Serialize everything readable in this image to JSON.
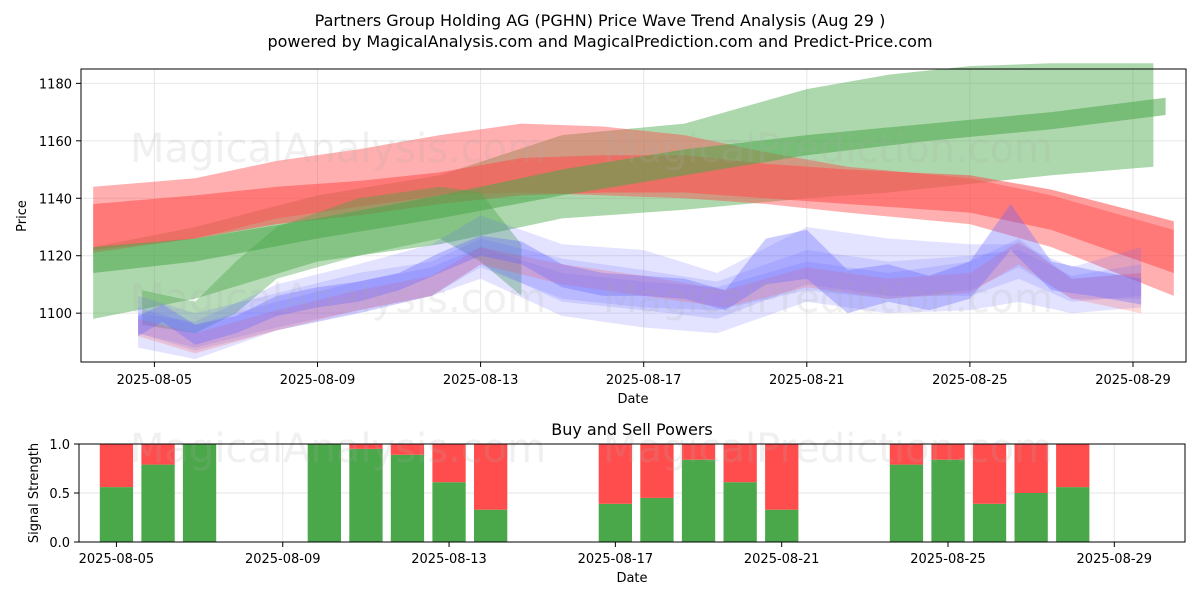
{
  "title_line1": "Partners Group Holding AG (PGHN) Price Wave Trend Analysis (Aug 29 )",
  "title_line2": "powered by MagicalAnalysis.com and MagicalPrediction.com and Predict-Price.com",
  "watermarks": [
    "MagicalAnalysis.com",
    "MagicalPrediction.com"
  ],
  "colors": {
    "green": "#4aa84a",
    "red": "#ff4d4d",
    "blue": "#6666ff",
    "light_green": "#7ec87e",
    "light_red": "#ff8f8f",
    "grid": "#e6e6e6"
  },
  "chart_data": [
    {
      "type": "area",
      "title": "",
      "xlabel": "Date",
      "ylabel": "Price",
      "ylim": [
        1083,
        1185
      ],
      "xlim": [
        "2025-08-03.2",
        "2025-08-30.3"
      ],
      "x_ticks": [
        "2025-08-05",
        "2025-08-09",
        "2025-08-13",
        "2025-08-17",
        "2025-08-21",
        "2025-08-25",
        "2025-08-29"
      ],
      "y_ticks": [
        1100,
        1120,
        1140,
        1160,
        1180
      ],
      "grid": true,
      "series": [
        {
          "name": "Green wide band",
          "color": "green",
          "opacity": 0.45,
          "x": [
            "2025-08-03.5",
            "2025-08-06",
            "2025-08-09",
            "2025-08-12",
            "2025-08-15",
            "2025-08-18",
            "2025-08-21",
            "2025-08-23",
            "2025-08-25",
            "2025-08-27",
            "2025-08-29.5"
          ],
          "upper": [
            1123,
            1130,
            1141,
            1148,
            1162,
            1166,
            1178,
            1183,
            1186,
            1187,
            1187
          ],
          "lower": [
            1098,
            1105,
            1118,
            1124,
            1133,
            1136,
            1140,
            1142,
            1145,
            1148,
            1151
          ]
        },
        {
          "name": "Red wide band",
          "color": "red",
          "opacity": 0.45,
          "x": [
            "2025-08-03.5",
            "2025-08-06",
            "2025-08-08",
            "2025-08-10",
            "2025-08-12",
            "2025-08-14",
            "2025-08-16",
            "2025-08-18",
            "2025-08-20",
            "2025-08-22",
            "2025-08-25",
            "2025-08-27",
            "2025-08-30"
          ],
          "upper": [
            1144,
            1147,
            1153,
            1157,
            1162,
            1166,
            1165,
            1162,
            1156,
            1151,
            1147,
            1141,
            1129
          ],
          "lower": [
            1121,
            1126,
            1133,
            1137,
            1141,
            1142,
            1141,
            1140,
            1138,
            1135,
            1131,
            1123,
            1106
          ]
        },
        {
          "name": "Red narrow band",
          "color": "red",
          "opacity": 0.55,
          "x": [
            "2025-08-03.5",
            "2025-08-06",
            "2025-08-08",
            "2025-08-10",
            "2025-08-12",
            "2025-08-14",
            "2025-08-16",
            "2025-08-18",
            "2025-08-20",
            "2025-08-22",
            "2025-08-25",
            "2025-08-27",
            "2025-08-30"
          ],
          "upper": [
            1138,
            1141,
            1144,
            1146,
            1149,
            1154,
            1155,
            1155,
            1152,
            1150,
            1148,
            1143,
            1132
          ],
          "lower": [
            1122,
            1126,
            1131,
            1134,
            1138,
            1141,
            1142,
            1142,
            1140,
            1138,
            1135,
            1129,
            1114
          ]
        },
        {
          "name": "Green narrow band",
          "color": "green",
          "opacity": 0.55,
          "x": [
            "2025-08-03.5",
            "2025-08-06",
            "2025-08-09",
            "2025-08-12",
            "2025-08-15",
            "2025-08-18",
            "2025-08-21",
            "2025-08-24",
            "2025-08-27",
            "2025-08-29.8"
          ],
          "upper": [
            1123,
            1126,
            1133,
            1141,
            1150,
            1157,
            1162,
            1166,
            1170,
            1175
          ],
          "lower": [
            1114,
            1118,
            1126,
            1133,
            1141,
            1148,
            1155,
            1160,
            1164,
            1169
          ]
        },
        {
          "name": "Green wave band",
          "color": "green",
          "opacity": 0.4,
          "x": [
            "2025-08-04.7",
            "2025-08-06",
            "2025-08-07",
            "2025-08-08",
            "2025-08-10",
            "2025-08-12",
            "2025-08-13",
            "2025-08-14"
          ],
          "upper": [
            1108,
            1104,
            1118,
            1130,
            1140,
            1144,
            1142,
            1124
          ],
          "lower": [
            1096,
            1093,
            1100,
            1112,
            1120,
            1126,
            1118,
            1106
          ]
        },
        {
          "name": "Blue wave band 1",
          "color": "blue",
          "opacity": 0.18,
          "x": [
            "2025-08-04.6",
            "2025-08-06",
            "2025-08-08",
            "2025-08-10",
            "2025-08-11.8",
            "2025-08-13",
            "2025-08-15",
            "2025-08-17",
            "2025-08-18.8",
            "2025-08-21",
            "2025-08-23",
            "2025-08-25",
            "2025-08-26.2",
            "2025-08-27.5",
            "2025-08-29.2"
          ],
          "upper": [
            1100,
            1097,
            1110,
            1117,
            1124,
            1134,
            1124,
            1122,
            1114,
            1130,
            1126,
            1124,
            1124,
            1116,
            1123
          ],
          "lower": [
            1088,
            1084,
            1094,
            1100,
            1106,
            1112,
            1099,
            1095,
            1093,
            1104,
            1100,
            1101,
            1104,
            1100,
            1102
          ]
        },
        {
          "name": "Blue wave band 2",
          "color": "blue",
          "opacity": 0.18,
          "x": [
            "2025-08-04.6",
            "2025-08-06",
            "2025-08-08",
            "2025-08-10",
            "2025-08-11.8",
            "2025-08-13",
            "2025-08-15",
            "2025-08-17",
            "2025-08-18.8",
            "2025-08-21",
            "2025-08-23",
            "2025-08-25",
            "2025-08-26.2",
            "2025-08-27.5",
            "2025-08-29.2"
          ],
          "upper": [
            1106,
            1100,
            1107,
            1114,
            1118,
            1126,
            1119,
            1115,
            1111,
            1122,
            1118,
            1120,
            1122,
            1113,
            1117
          ],
          "lower": [
            1093,
            1088,
            1095,
            1101,
            1106,
            1117,
            1104,
            1101,
            1098,
            1110,
            1106,
            1106,
            1112,
            1104,
            1106
          ]
        },
        {
          "name": "Blue wave band 3",
          "color": "blue",
          "opacity": 0.18,
          "x": [
            "2025-08-04.6",
            "2025-08-06",
            "2025-08-08",
            "2025-08-10",
            "2025-08-11.8",
            "2025-08-13",
            "2025-08-15",
            "2025-08-17",
            "2025-08-18.8",
            "2025-08-21",
            "2025-08-23",
            "2025-08-25",
            "2025-08-26.2",
            "2025-08-27.5",
            "2025-08-29.2"
          ],
          "upper": [
            1102,
            1096,
            1104,
            1111,
            1116,
            1123,
            1114,
            1111,
            1109,
            1118,
            1114,
            1118,
            1126,
            1112,
            1114
          ],
          "lower": [
            1093,
            1087,
            1094,
            1100,
            1106,
            1116,
            1105,
            1102,
            1101,
            1108,
            1105,
            1108,
            1116,
            1105,
            1105
          ]
        },
        {
          "name": "Red thin wave",
          "color": "red",
          "opacity": 0.22,
          "x": [
            "2025-08-04.6",
            "2025-08-06",
            "2025-08-08",
            "2025-08-10",
            "2025-08-11.8",
            "2025-08-13",
            "2025-08-15",
            "2025-08-17",
            "2025-08-19",
            "2025-08-21",
            "2025-08-23",
            "2025-08-25",
            "2025-08-26.2",
            "2025-08-27.5",
            "2025-08-29.2"
          ],
          "upper": [
            1098,
            1093,
            1101,
            1108,
            1113,
            1123,
            1117,
            1113,
            1108,
            1116,
            1112,
            1114,
            1125,
            1112,
            1114
          ],
          "lower": [
            1092,
            1086,
            1094,
            1101,
            1106,
            1117,
            1110,
            1106,
            1102,
            1109,
            1105,
            1107,
            1117,
            1105,
            1100
          ]
        },
        {
          "name": "Blue core wave",
          "color": "blue",
          "opacity": 0.35,
          "x": [
            "2025-08-04.6",
            "2025-08-05.2",
            "2025-08-06",
            "2025-08-07",
            "2025-08-08",
            "2025-08-09",
            "2025-08-10",
            "2025-08-11",
            "2025-08-12",
            "2025-08-13",
            "2025-08-14",
            "2025-08-15",
            "2025-08-16",
            "2025-08-17",
            "2025-08-18",
            "2025-08-19",
            "2025-08-20",
            "2025-08-21",
            "2025-08-22",
            "2025-08-23",
            "2025-08-24",
            "2025-08-25",
            "2025-08-26",
            "2025-08-27",
            "2025-08-28",
            "2025-08-29.2"
          ],
          "upper": [
            1099,
            1103,
            1096,
            1099,
            1106,
            1109,
            1111,
            1114,
            1121,
            1127,
            1125,
            1117,
            1114,
            1113,
            1112,
            1108,
            1126,
            1129,
            1115,
            1117,
            1113,
            1118,
            1138,
            1118,
            1115,
            1112
          ],
          "lower": [
            1092,
            1097,
            1089,
            1093,
            1099,
            1102,
            1104,
            1108,
            1114,
            1120,
            1117,
            1109,
            1106,
            1106,
            1105,
            1101,
            1110,
            1112,
            1100,
            1104,
            1101,
            1105,
            1122,
            1108,
            1106,
            1103
          ]
        }
      ]
    },
    {
      "type": "bar",
      "title": "Buy and Sell Powers",
      "xlabel": "Date",
      "ylabel": "Signal Strength",
      "ylim": [
        0,
        1
      ],
      "xlim": [
        "2025-08-04.1",
        "2025-08-30.7"
      ],
      "x_ticks": [
        "2025-08-05",
        "2025-08-09",
        "2025-08-13",
        "2025-08-17",
        "2025-08-21",
        "2025-08-25",
        "2025-08-29"
      ],
      "y_ticks": [
        "0.0",
        "0.5",
        "1.0"
      ],
      "grid": true,
      "categories": [
        "2025-08-05",
        "2025-08-06",
        "2025-08-07",
        "2025-08-10",
        "2025-08-11",
        "2025-08-12",
        "2025-08-13",
        "2025-08-14",
        "2025-08-17",
        "2025-08-18",
        "2025-08-19",
        "2025-08-20",
        "2025-08-21",
        "2025-08-24",
        "2025-08-25",
        "2025-08-26",
        "2025-08-27",
        "2025-08-28"
      ],
      "series": [
        {
          "name": "Buy",
          "color": "green",
          "values": [
            0.56,
            0.79,
            1.0,
            1.0,
            0.95,
            0.89,
            0.61,
            0.33,
            0.39,
            0.45,
            0.84,
            0.61,
            0.33,
            0.79,
            0.84,
            0.39,
            0.5,
            0.56
          ]
        },
        {
          "name": "Sell",
          "color": "red",
          "values": [
            0.44,
            0.21,
            0.0,
            0.0,
            0.05,
            0.11,
            0.39,
            0.67,
            0.61,
            0.55,
            0.16,
            0.39,
            0.67,
            0.21,
            0.16,
            0.61,
            0.5,
            0.44
          ]
        }
      ]
    }
  ]
}
